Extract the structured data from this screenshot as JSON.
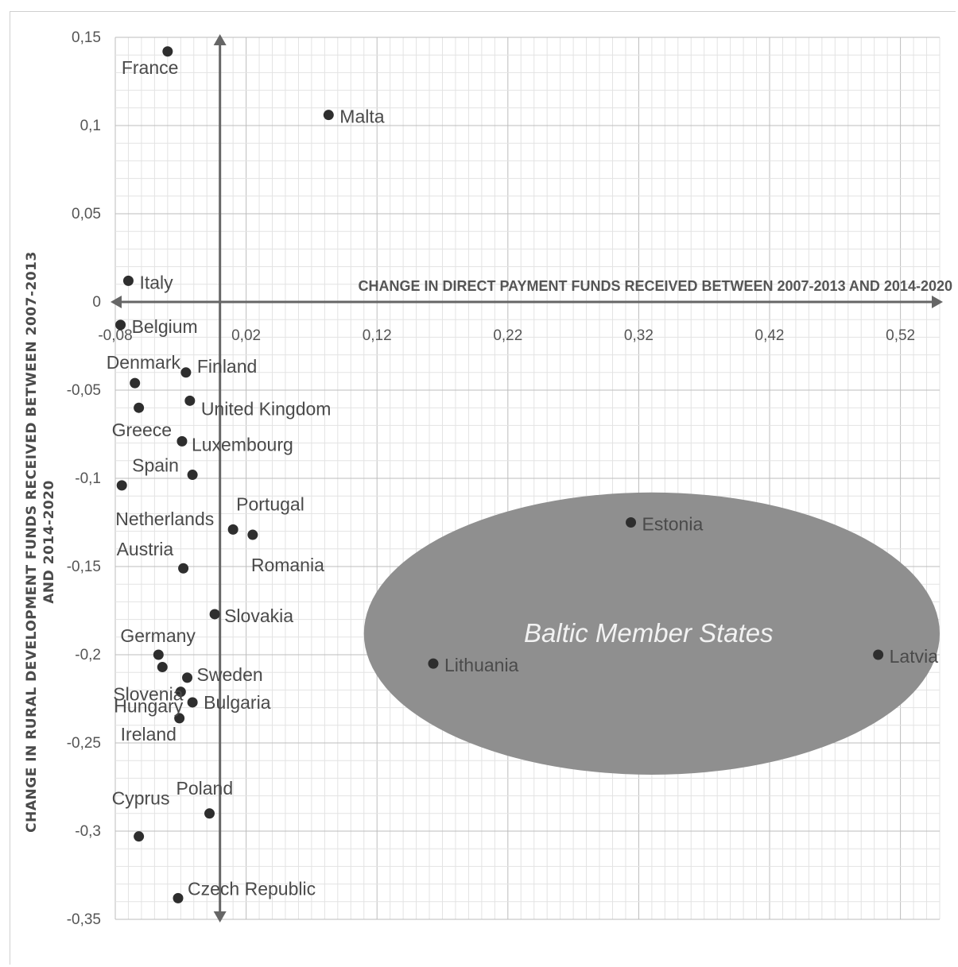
{
  "chart_data": {
    "type": "scatter",
    "xlabel": "CHANGE IN DIRECT PAYMENT FUNDS RECEIVED BETWEEN 2007-2013 AND 2014-2020",
    "ylabel_lines": [
      "CHANGE IN RURAL DEVELOPMENT FUNDS RECEIVED BETWEEN 2007-2013",
      "AND 2014-2020"
    ],
    "x_ticks": [
      -0.08,
      0.02,
      0.12,
      0.22,
      0.32,
      0.42,
      0.52
    ],
    "x_tick_labels": [
      "-0,08",
      "0,02",
      "0,12",
      "0,22",
      "0,32",
      "0,42",
      "0,52"
    ],
    "y_ticks": [
      0.15,
      0.1,
      0.05,
      0,
      -0.05,
      -0.1,
      -0.15,
      -0.2,
      -0.25,
      -0.3,
      -0.35
    ],
    "y_tick_labels": [
      "0,15",
      "0,1",
      "0,05",
      "0",
      "-0,05",
      "-0,1",
      "-0,15",
      "-0,2",
      "-0,25",
      "-0,3",
      "-0,35"
    ],
    "xlim": [
      -0.08,
      0.55
    ],
    "ylim": [
      -0.35,
      0.15
    ],
    "grid": true,
    "region": {
      "label": "Baltic Member States",
      "fill": "#8f8f8f",
      "cx": 0.33,
      "cy": -0.188,
      "rx": 0.22,
      "ry": 0.08
    },
    "points": [
      {
        "label": "France",
        "x": -0.04,
        "y": 0.142
      },
      {
        "label": "Malta",
        "x": 0.083,
        "y": 0.106
      },
      {
        "label": "Italy",
        "x": -0.07,
        "y": 0.012
      },
      {
        "label": "Belgium",
        "x": -0.076,
        "y": -0.013
      },
      {
        "label": "Denmark",
        "x": -0.065,
        "y": -0.046
      },
      {
        "label": "Finland",
        "x": -0.026,
        "y": -0.04
      },
      {
        "label": "United Kingdom",
        "x": -0.023,
        "y": -0.056
      },
      {
        "label": "Greece",
        "x": -0.062,
        "y": -0.06
      },
      {
        "label": "Luxembourg",
        "x": -0.029,
        "y": -0.079
      },
      {
        "label": "Spain",
        "x": -0.021,
        "y": -0.098
      },
      {
        "label": "Netherlands",
        "x": -0.075,
        "y": -0.104
      },
      {
        "label": "Portugal",
        "x": 0.01,
        "y": -0.129
      },
      {
        "label": "Romania",
        "x": 0.025,
        "y": -0.132
      },
      {
        "label": "Austria",
        "x": -0.028,
        "y": -0.151
      },
      {
        "label": "Slovakia",
        "x": -0.004,
        "y": -0.177
      },
      {
        "label": "Germany",
        "x": -0.047,
        "y": -0.2
      },
      {
        "label": "Slovenia",
        "x": -0.044,
        "y": -0.207
      },
      {
        "label": "Sweden",
        "x": -0.025,
        "y": -0.213
      },
      {
        "label": "Hungary",
        "x": -0.03,
        "y": -0.221
      },
      {
        "label": "Bulgaria",
        "x": -0.021,
        "y": -0.227
      },
      {
        "label": "Ireland",
        "x": -0.031,
        "y": -0.236
      },
      {
        "label": "Poland",
        "x": -0.008,
        "y": -0.29
      },
      {
        "label": "Cyprus",
        "x": -0.062,
        "y": -0.303
      },
      {
        "label": "Czech Republic",
        "x": -0.032,
        "y": -0.338
      },
      {
        "label": "Estonia",
        "x": 0.314,
        "y": -0.125
      },
      {
        "label": "Lithuania",
        "x": 0.163,
        "y": -0.205
      },
      {
        "label": "Latvia",
        "x": 0.503,
        "y": -0.2
      }
    ],
    "point_color": "#2e2e2e",
    "axis_color": "#666666"
  }
}
